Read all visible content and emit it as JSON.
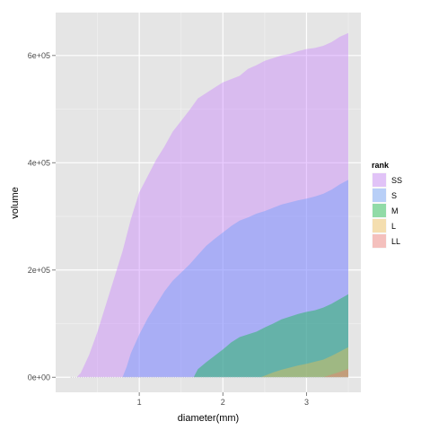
{
  "chart_data": {
    "type": "area",
    "xlabel": "diameter(mm)",
    "ylabel": "volume",
    "xlim": [
      0.0,
      3.65
    ],
    "ylim": [
      -28000,
      680000
    ],
    "x_ticks": [
      {
        "value": 1,
        "label": "1"
      },
      {
        "value": 2,
        "label": "2"
      },
      {
        "value": 3,
        "label": "3"
      }
    ],
    "y_ticks": [
      {
        "value": 0,
        "label": "0e+00"
      },
      {
        "value": 200000,
        "label": "2e+05"
      },
      {
        "value": 400000,
        "label": "4e+05"
      },
      {
        "value": 600000,
        "label": "6e+05"
      }
    ],
    "grid": true,
    "legend": {
      "title": "rank",
      "placement": "right"
    },
    "series": [
      {
        "name": "SS",
        "color": "#C77CFF",
        "x": [
          0.25,
          0.3,
          0.4,
          0.5,
          0.6,
          0.7,
          0.8,
          0.9,
          1.0,
          1.1,
          1.2,
          1.3,
          1.4,
          1.5,
          1.6,
          1.7,
          1.8,
          1.9,
          2.0,
          2.1,
          2.2,
          2.3,
          2.4,
          2.5,
          2.6,
          2.7,
          2.8,
          2.9,
          3.0,
          3.1,
          3.2,
          3.3,
          3.4,
          3.5
        ],
        "cum": [
          0,
          8000,
          42000,
          85000,
          135000,
          185000,
          235000,
          295000,
          345000,
          375000,
          405000,
          430000,
          458000,
          478000,
          498000,
          520000,
          530000,
          540000,
          550000,
          556000,
          562000,
          575000,
          582000,
          590000,
          595000,
          600000,
          603000,
          608000,
          612000,
          614000,
          618000,
          625000,
          635000,
          642000
        ]
      },
      {
        "name": "S",
        "color": "#619CFF",
        "x": [
          0.8,
          0.85,
          0.9,
          1.0,
          1.1,
          1.2,
          1.3,
          1.4,
          1.5,
          1.6,
          1.7,
          1.8,
          1.9,
          2.0,
          2.1,
          2.2,
          2.3,
          2.4,
          2.5,
          2.6,
          2.7,
          2.8,
          2.9,
          3.0,
          3.1,
          3.2,
          3.3,
          3.4,
          3.5
        ],
        "cum": [
          0,
          20000,
          45000,
          80000,
          110000,
          135000,
          160000,
          180000,
          195000,
          210000,
          228000,
          245000,
          258000,
          270000,
          282000,
          292000,
          298000,
          305000,
          310000,
          316000,
          322000,
          326000,
          330000,
          333000,
          337000,
          342000,
          350000,
          360000,
          368000
        ]
      },
      {
        "name": "M",
        "color": "#00BA38",
        "x": [
          1.65,
          1.7,
          1.8,
          1.9,
          2.0,
          2.1,
          2.2,
          2.3,
          2.4,
          2.5,
          2.6,
          2.7,
          2.8,
          2.9,
          3.0,
          3.1,
          3.2,
          3.3,
          3.4,
          3.5
        ],
        "cum": [
          0,
          15000,
          28000,
          40000,
          52000,
          65000,
          75000,
          80000,
          85000,
          93000,
          100000,
          108000,
          113000,
          118000,
          122000,
          125000,
          130000,
          137000,
          146000,
          155000
        ]
      },
      {
        "name": "L",
        "color": "#F8C04B",
        "x": [
          2.45,
          2.5,
          2.6,
          2.7,
          2.8,
          2.9,
          3.0,
          3.1,
          3.2,
          3.3,
          3.4,
          3.5
        ],
        "cum": [
          0,
          3000,
          9000,
          14000,
          18000,
          22000,
          25000,
          29000,
          33000,
          40000,
          48000,
          56000
        ]
      },
      {
        "name": "LL",
        "color": "#F8766D",
        "x": [
          3.2,
          3.3,
          3.4,
          3.5
        ],
        "cum": [
          0,
          5000,
          10000,
          16000
        ]
      }
    ]
  }
}
